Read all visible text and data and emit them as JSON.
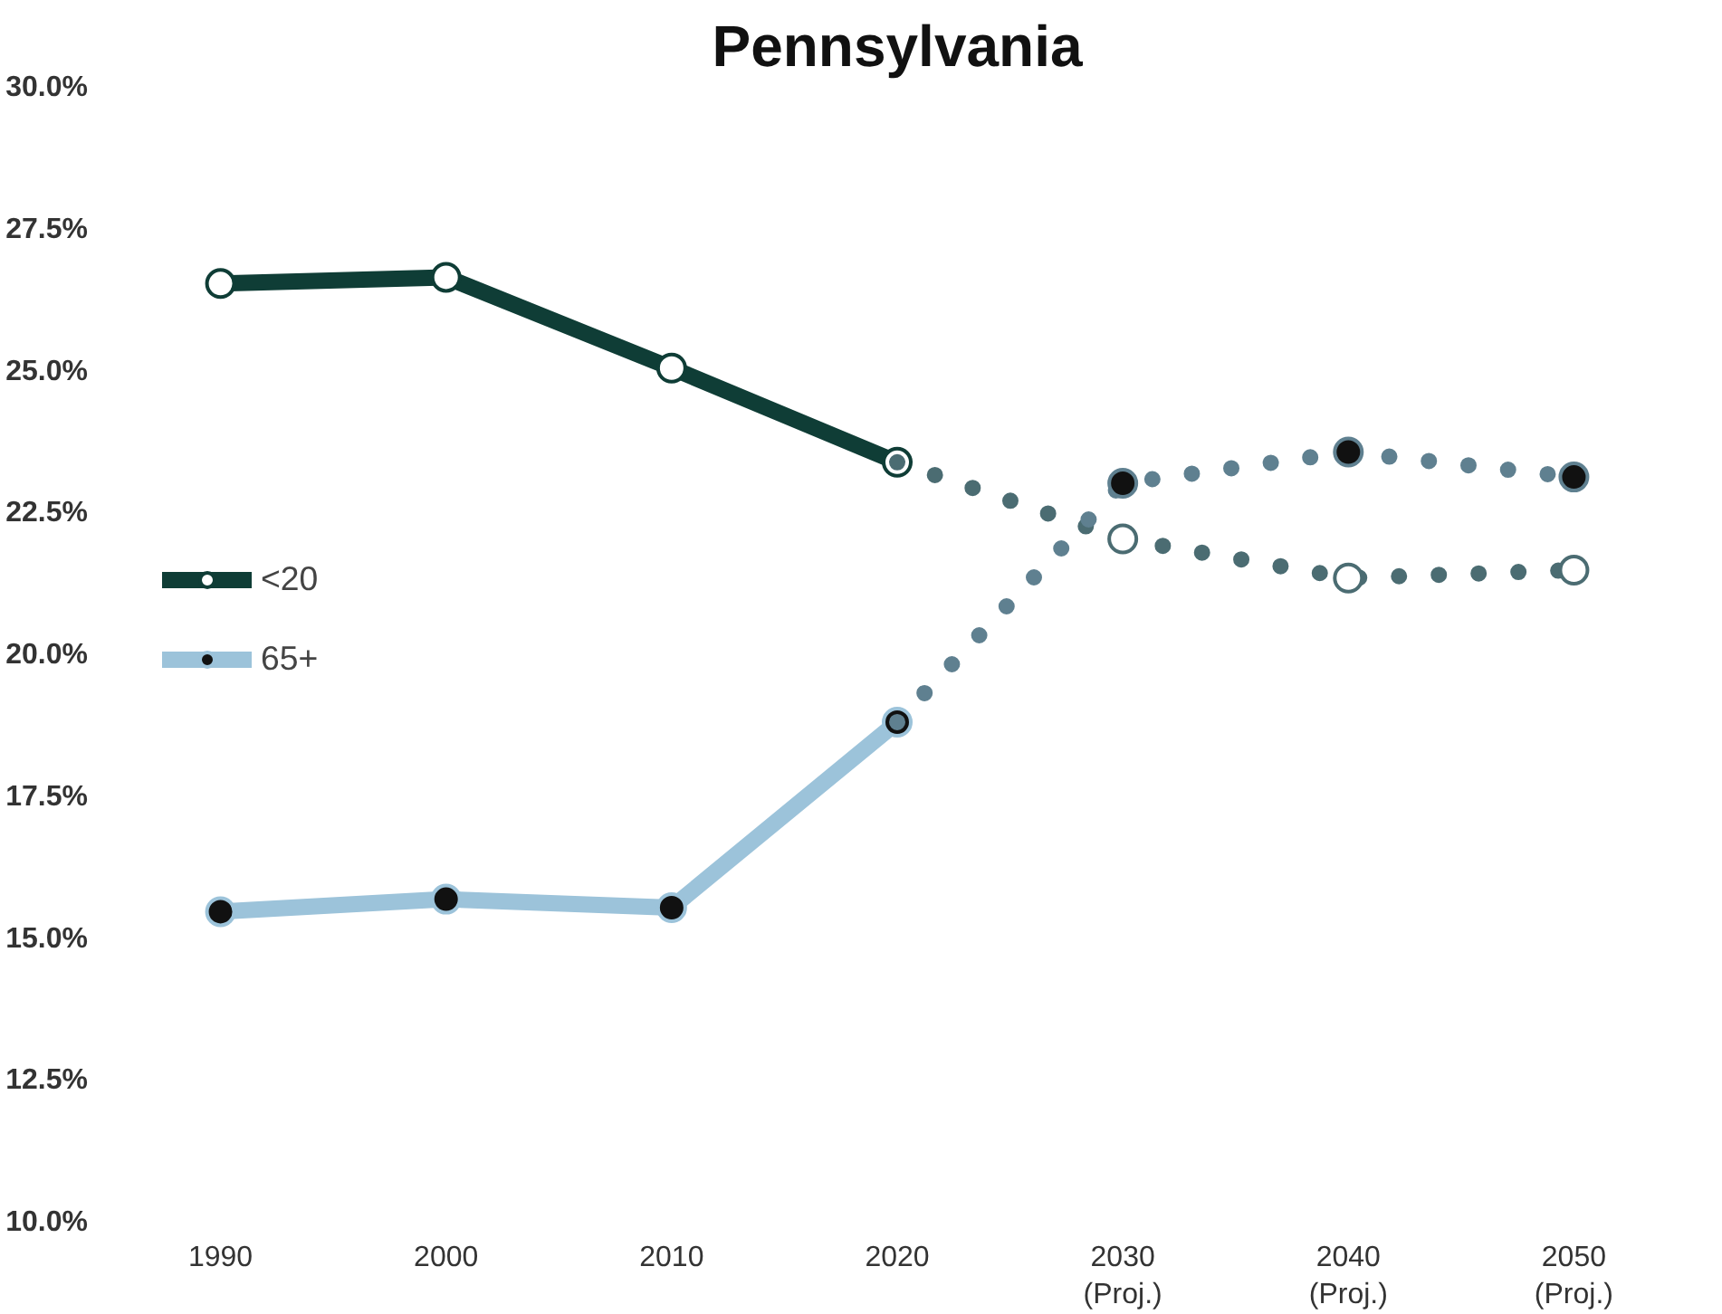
{
  "chart_data": {
    "type": "line",
    "title": "Pennsylvania",
    "categories": [
      "1990",
      "2000",
      "2010",
      "2020",
      "2030\n(Proj.)",
      "2040\n(Proj.)",
      "2050\n(Proj.)"
    ],
    "series": [
      {
        "name": "<20",
        "color": "#0f3d36",
        "line_style": "solid",
        "marker": "circle",
        "colors": [
          "#ffffff",
          "#ffffff",
          "#ffffff",
          "#ffffff",
          null,
          null,
          null
        ],
        "values": [
          26.55,
          26.66,
          25.06,
          23.4,
          null,
          null,
          null
        ]
      },
      {
        "name": "65+",
        "color": "#9cc3da",
        "line_style": "solid",
        "marker": "circle",
        "colors": [
          "#111111",
          "#111111",
          "#111111",
          "#111111",
          null,
          null,
          null
        ],
        "values": [
          15.48,
          15.7,
          15.55,
          18.82,
          null,
          null,
          null
        ]
      },
      {
        "color": "#4b6c72",
        "line_style": "dotted",
        "marker": "circle",
        "colors": [
          null,
          null,
          null,
          null,
          "#ffffff",
          "#ffffff",
          "#ffffff"
        ],
        "values": [
          null,
          null,
          null,
          23.4,
          22.05,
          21.36,
          21.5
        ]
      },
      {
        "color": "#5f8090",
        "line_style": "dotted",
        "marker": "circle",
        "colors": [
          null,
          null,
          null,
          null,
          "#111111",
          "#111111",
          "#111111"
        ],
        "values": [
          null,
          null,
          null,
          18.82,
          23.03,
          23.58,
          23.14
        ]
      }
    ],
    "ylim": [
      10,
      30
    ],
    "yticks": [
      {
        "value": 10,
        "label": "10.0%"
      },
      {
        "value": 12.5,
        "label": "12.5%"
      },
      {
        "value": 15,
        "label": "15.0%"
      },
      {
        "value": 17.5,
        "label": "17.5%"
      },
      {
        "value": 20,
        "label": "20.0%"
      },
      {
        "value": 22.5,
        "label": "22.5%"
      },
      {
        "value": 25,
        "label": "25.0%"
      },
      {
        "value": 27.5,
        "label": "27.5%"
      },
      {
        "value": 30,
        "label": "30.0%"
      }
    ],
    "grid": false,
    "legend": "left"
  }
}
